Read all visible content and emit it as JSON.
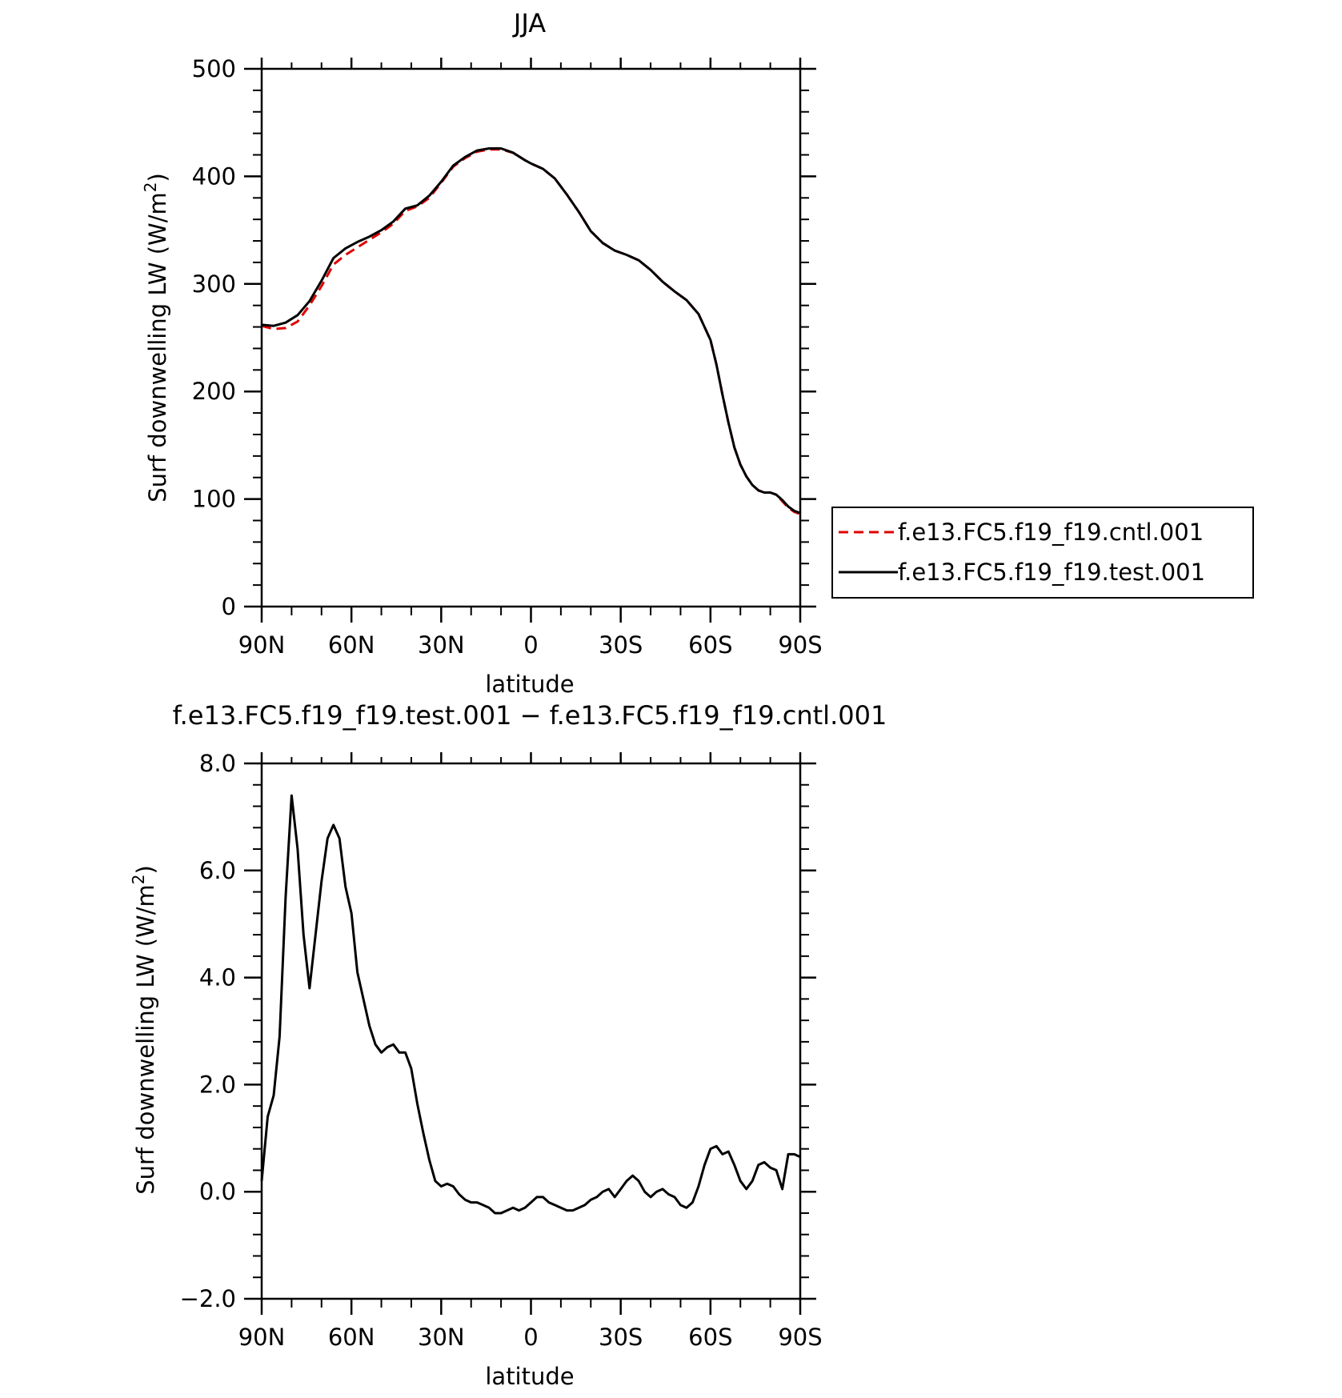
{
  "colors": {
    "cntl": "#e00000",
    "test": "#000000",
    "background": "#ffffff"
  },
  "chart_data": [
    {
      "type": "line",
      "title": "JJA",
      "xlabel": "latitude",
      "ylabel": "Surf downwelling LW (W/m²)",
      "xlim": [
        90,
        -90
      ],
      "ylim": [
        0,
        500
      ],
      "xticks": [
        {
          "value": 90,
          "label": "90N"
        },
        {
          "value": 60,
          "label": "60N"
        },
        {
          "value": 30,
          "label": "30N"
        },
        {
          "value": 0,
          "label": "0"
        },
        {
          "value": -30,
          "label": "30S"
        },
        {
          "value": -60,
          "label": "60S"
        },
        {
          "value": -90,
          "label": "90S"
        }
      ],
      "yticks": [
        {
          "value": 0,
          "label": "0"
        },
        {
          "value": 100,
          "label": "100"
        },
        {
          "value": 200,
          "label": "200"
        },
        {
          "value": 300,
          "label": "300"
        },
        {
          "value": 400,
          "label": "400"
        },
        {
          "value": 500,
          "label": "500"
        }
      ],
      "legend": {
        "placement": "right-middle"
      },
      "series": [
        {
          "name": "f.e13.FC5.f19_f19.cntl.001",
          "style": "dashed",
          "x": [
            90,
            86,
            82,
            78,
            74,
            70,
            66,
            62,
            58,
            54,
            50,
            46,
            42,
            38,
            34,
            30,
            26,
            22,
            18,
            14,
            10,
            6,
            2,
            0,
            -4,
            -8,
            -12,
            -16,
            -20,
            -24,
            -28,
            -32,
            -36,
            -40,
            -44,
            -48,
            -52,
            -56,
            -60,
            -62,
            -64,
            -66,
            -68,
            -70,
            -72,
            -74,
            -76,
            -78,
            -80,
            -82,
            -84,
            -86,
            -88,
            -90
          ],
          "y": [
            261,
            258,
            259,
            265,
            280,
            298,
            318,
            327,
            334,
            341,
            348,
            356,
            368,
            372,
            380,
            394,
            409,
            417,
            423,
            425,
            425,
            422,
            415,
            412,
            407,
            398,
            383,
            367,
            349,
            338,
            331,
            327,
            322,
            313,
            302,
            293,
            285,
            272,
            248,
            225,
            197,
            171,
            148,
            132,
            121,
            113,
            108,
            106,
            106,
            104,
            98,
            92,
            88,
            86
          ]
        },
        {
          "name": "f.e13.FC5.f19_f19.test.001",
          "style": "solid",
          "x": [
            90,
            86,
            82,
            78,
            74,
            70,
            66,
            62,
            58,
            54,
            50,
            46,
            42,
            38,
            34,
            30,
            26,
            22,
            18,
            14,
            10,
            6,
            2,
            0,
            -4,
            -8,
            -12,
            -16,
            -20,
            -24,
            -28,
            -32,
            -36,
            -40,
            -44,
            -48,
            -52,
            -56,
            -60,
            -62,
            -64,
            -66,
            -68,
            -70,
            -72,
            -74,
            -76,
            -78,
            -80,
            -82,
            -84,
            -86,
            -88,
            -90
          ],
          "y": [
            262,
            261,
            264,
            271,
            284,
            303,
            324,
            333,
            339,
            344,
            350,
            358,
            370,
            373,
            382,
            395,
            410,
            418,
            424,
            426,
            426,
            422,
            415,
            412,
            407,
            398,
            383,
            367,
            349,
            338,
            331,
            327,
            322,
            313,
            302,
            293,
            285,
            272,
            248,
            225,
            197,
            171,
            148,
            132,
            121,
            113,
            108,
            106,
            106,
            104,
            99,
            93,
            89,
            87
          ]
        }
      ]
    },
    {
      "type": "line",
      "title": "f.e13.FC5.f19_f19.test.001 − f.e13.FC5.f19_f19.cntl.001",
      "xlabel": "latitude",
      "ylabel": "Surf downwelling LW (W/m²)",
      "xlim": [
        90,
        -90
      ],
      "ylim": [
        -2,
        8
      ],
      "xticks": [
        {
          "value": 90,
          "label": "90N"
        },
        {
          "value": 60,
          "label": "60N"
        },
        {
          "value": 30,
          "label": "30N"
        },
        {
          "value": 0,
          "label": "0"
        },
        {
          "value": -30,
          "label": "30S"
        },
        {
          "value": -60,
          "label": "60S"
        },
        {
          "value": -90,
          "label": "90S"
        }
      ],
      "yticks": [
        {
          "value": -2,
          "label": "−2.0"
        },
        {
          "value": 0,
          "label": "0.0"
        },
        {
          "value": 2,
          "label": "2.0"
        },
        {
          "value": 4,
          "label": "4.0"
        },
        {
          "value": 6,
          "label": "6.0"
        },
        {
          "value": 8,
          "label": "8.0"
        }
      ],
      "series": [
        {
          "style": "solid",
          "x": [
            90,
            88,
            86,
            84,
            82,
            80,
            78,
            76,
            74,
            72,
            70,
            68,
            66,
            64,
            62,
            60,
            58,
            56,
            54,
            52,
            50,
            48,
            46,
            44,
            42,
            40,
            38,
            36,
            34,
            32,
            30,
            28,
            26,
            24,
            22,
            20,
            18,
            16,
            14,
            12,
            10,
            8,
            6,
            4,
            2,
            0,
            -2,
            -4,
            -6,
            -8,
            -10,
            -12,
            -14,
            -16,
            -18,
            -20,
            -22,
            -24,
            -26,
            -28,
            -30,
            -32,
            -34,
            -36,
            -38,
            -40,
            -42,
            -44,
            -46,
            -48,
            -50,
            -52,
            -54,
            -56,
            -58,
            -60,
            -62,
            -64,
            -66,
            -68,
            -70,
            -72,
            -74,
            -76,
            -78,
            -80,
            -82,
            -84,
            -86,
            -88,
            -90
          ],
          "y": [
            0.2,
            1.4,
            1.8,
            2.9,
            5.5,
            7.4,
            6.4,
            4.8,
            3.8,
            4.8,
            5.8,
            6.6,
            6.85,
            6.6,
            5.7,
            5.2,
            4.1,
            3.6,
            3.1,
            2.75,
            2.6,
            2.7,
            2.75,
            2.6,
            2.6,
            2.3,
            1.65,
            1.1,
            0.6,
            0.2,
            0.1,
            0.15,
            0.1,
            -0.05,
            -0.15,
            -0.2,
            -0.2,
            -0.25,
            -0.3,
            -0.4,
            -0.4,
            -0.35,
            -0.3,
            -0.35,
            -0.3,
            -0.2,
            -0.1,
            -0.1,
            -0.2,
            -0.25,
            -0.3,
            -0.35,
            -0.35,
            -0.3,
            -0.25,
            -0.15,
            -0.1,
            0.0,
            0.05,
            -0.1,
            0.05,
            0.2,
            0.3,
            0.2,
            0.0,
            -0.1,
            0.0,
            0.05,
            -0.05,
            -0.1,
            -0.25,
            -0.3,
            -0.2,
            0.1,
            0.5,
            0.8,
            0.85,
            0.7,
            0.75,
            0.5,
            0.2,
            0.05,
            0.2,
            0.5,
            0.55,
            0.45,
            0.4,
            0.05,
            0.7,
            0.7,
            0.65
          ]
        }
      ]
    }
  ]
}
